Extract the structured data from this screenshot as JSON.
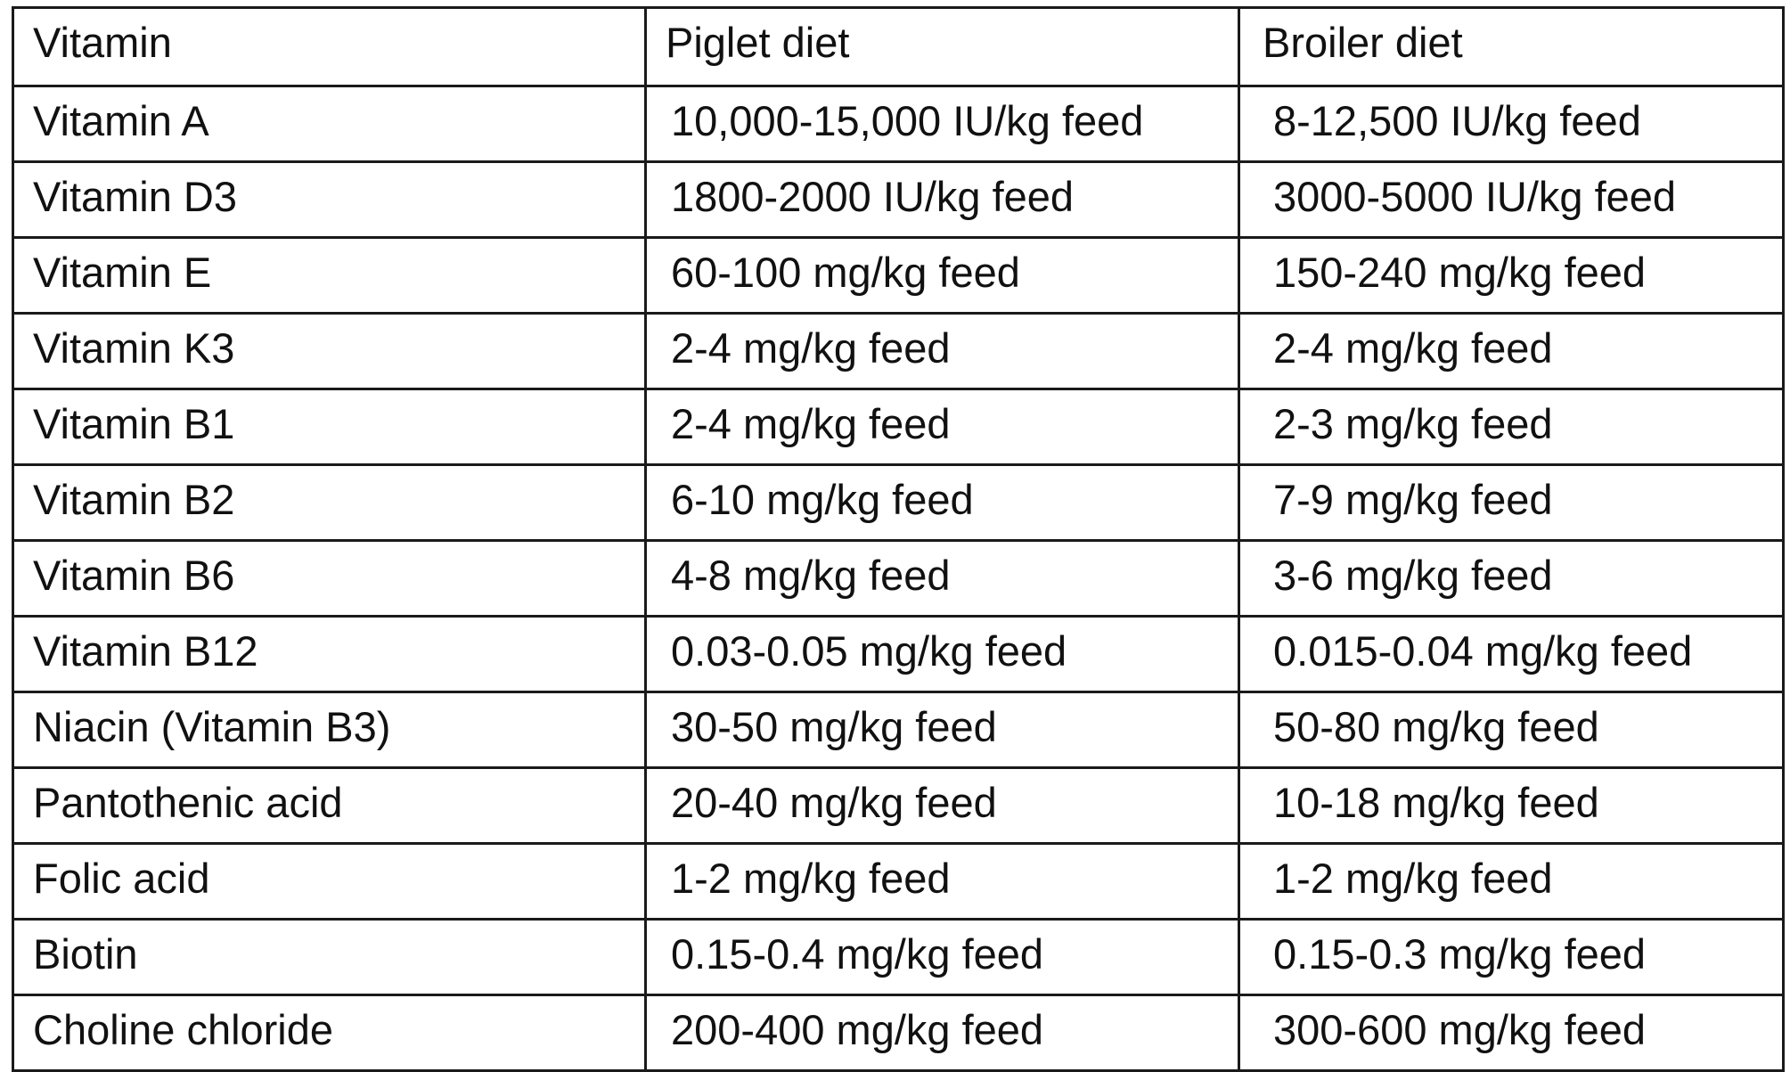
{
  "table": {
    "headers": {
      "vitamin": "Vitamin",
      "piglet": "Piglet diet",
      "broiler": "Broiler diet"
    },
    "rows": [
      {
        "vitamin": "Vitamin A",
        "piglet": "10,000-15,000 IU/kg feed",
        "broiler": "8-12,500 IU/kg feed"
      },
      {
        "vitamin": "Vitamin D3",
        "piglet": "1800-2000 IU/kg feed",
        "broiler": "3000-5000 IU/kg feed"
      },
      {
        "vitamin": "Vitamin E",
        "piglet": "60-100 mg/kg feed",
        "broiler": "150-240 mg/kg feed"
      },
      {
        "vitamin": "Vitamin K3",
        "piglet": "2-4 mg/kg feed",
        "broiler": "2-4 mg/kg feed"
      },
      {
        "vitamin": "Vitamin B1",
        "piglet": "2-4 mg/kg feed",
        "broiler": "2-3 mg/kg feed"
      },
      {
        "vitamin": "Vitamin B2",
        "piglet": "6-10 mg/kg feed",
        "broiler": "7-9 mg/kg feed"
      },
      {
        "vitamin": "Vitamin B6",
        "piglet": "4-8 mg/kg feed",
        "broiler": "3-6 mg/kg feed"
      },
      {
        "vitamin": "Vitamin B12",
        "piglet": "0.03-0.05 mg/kg feed",
        "broiler": "0.015-0.04 mg/kg feed"
      },
      {
        "vitamin": "Niacin (Vitamin B3)",
        "piglet": "30-50 mg/kg feed",
        "broiler": "50-80 mg/kg feed"
      },
      {
        "vitamin": "Pantothenic acid",
        "piglet": "20-40 mg/kg feed",
        "broiler": "10-18 mg/kg feed"
      },
      {
        "vitamin": "Folic acid",
        "piglet": "1-2 mg/kg feed",
        "broiler": "1-2 mg/kg feed"
      },
      {
        "vitamin": "Biotin",
        "piglet": "0.15-0.4 mg/kg feed",
        "broiler": "0.15-0.3 mg/kg feed"
      },
      {
        "vitamin": "Choline chloride",
        "piglet": "200-400 mg/kg feed",
        "broiler": "300-600 mg/kg feed"
      }
    ]
  }
}
